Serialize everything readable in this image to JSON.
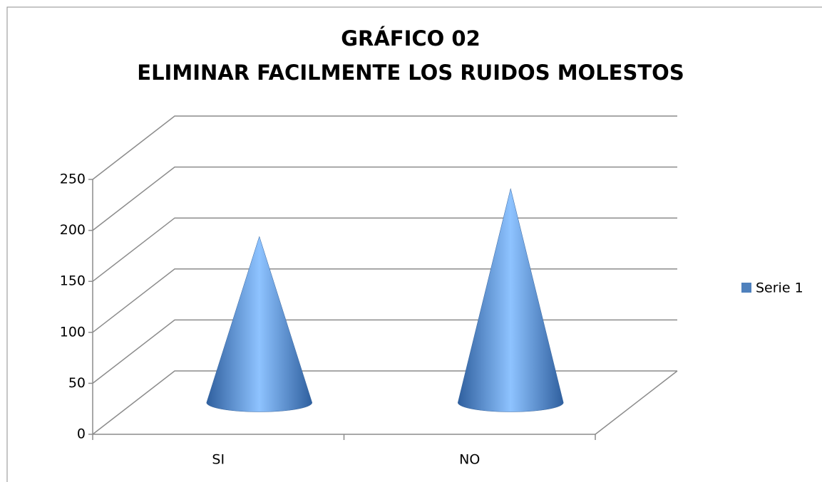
{
  "chart_data": {
    "type": "cone3d",
    "title": "GRÁFICO 02",
    "subtitle": "ELIMINAR FACILMENTE LOS RUIDOS MOLESTOS",
    "categories": [
      "SI",
      "NO"
    ],
    "series": [
      {
        "name": "Serie 1",
        "color": "#4f81bd",
        "values": [
          163,
          210
        ]
      }
    ],
    "ylim": [
      0,
      250
    ],
    "yticks": [
      0,
      50,
      100,
      150,
      200,
      250
    ],
    "grid": true,
    "legend": "right"
  }
}
